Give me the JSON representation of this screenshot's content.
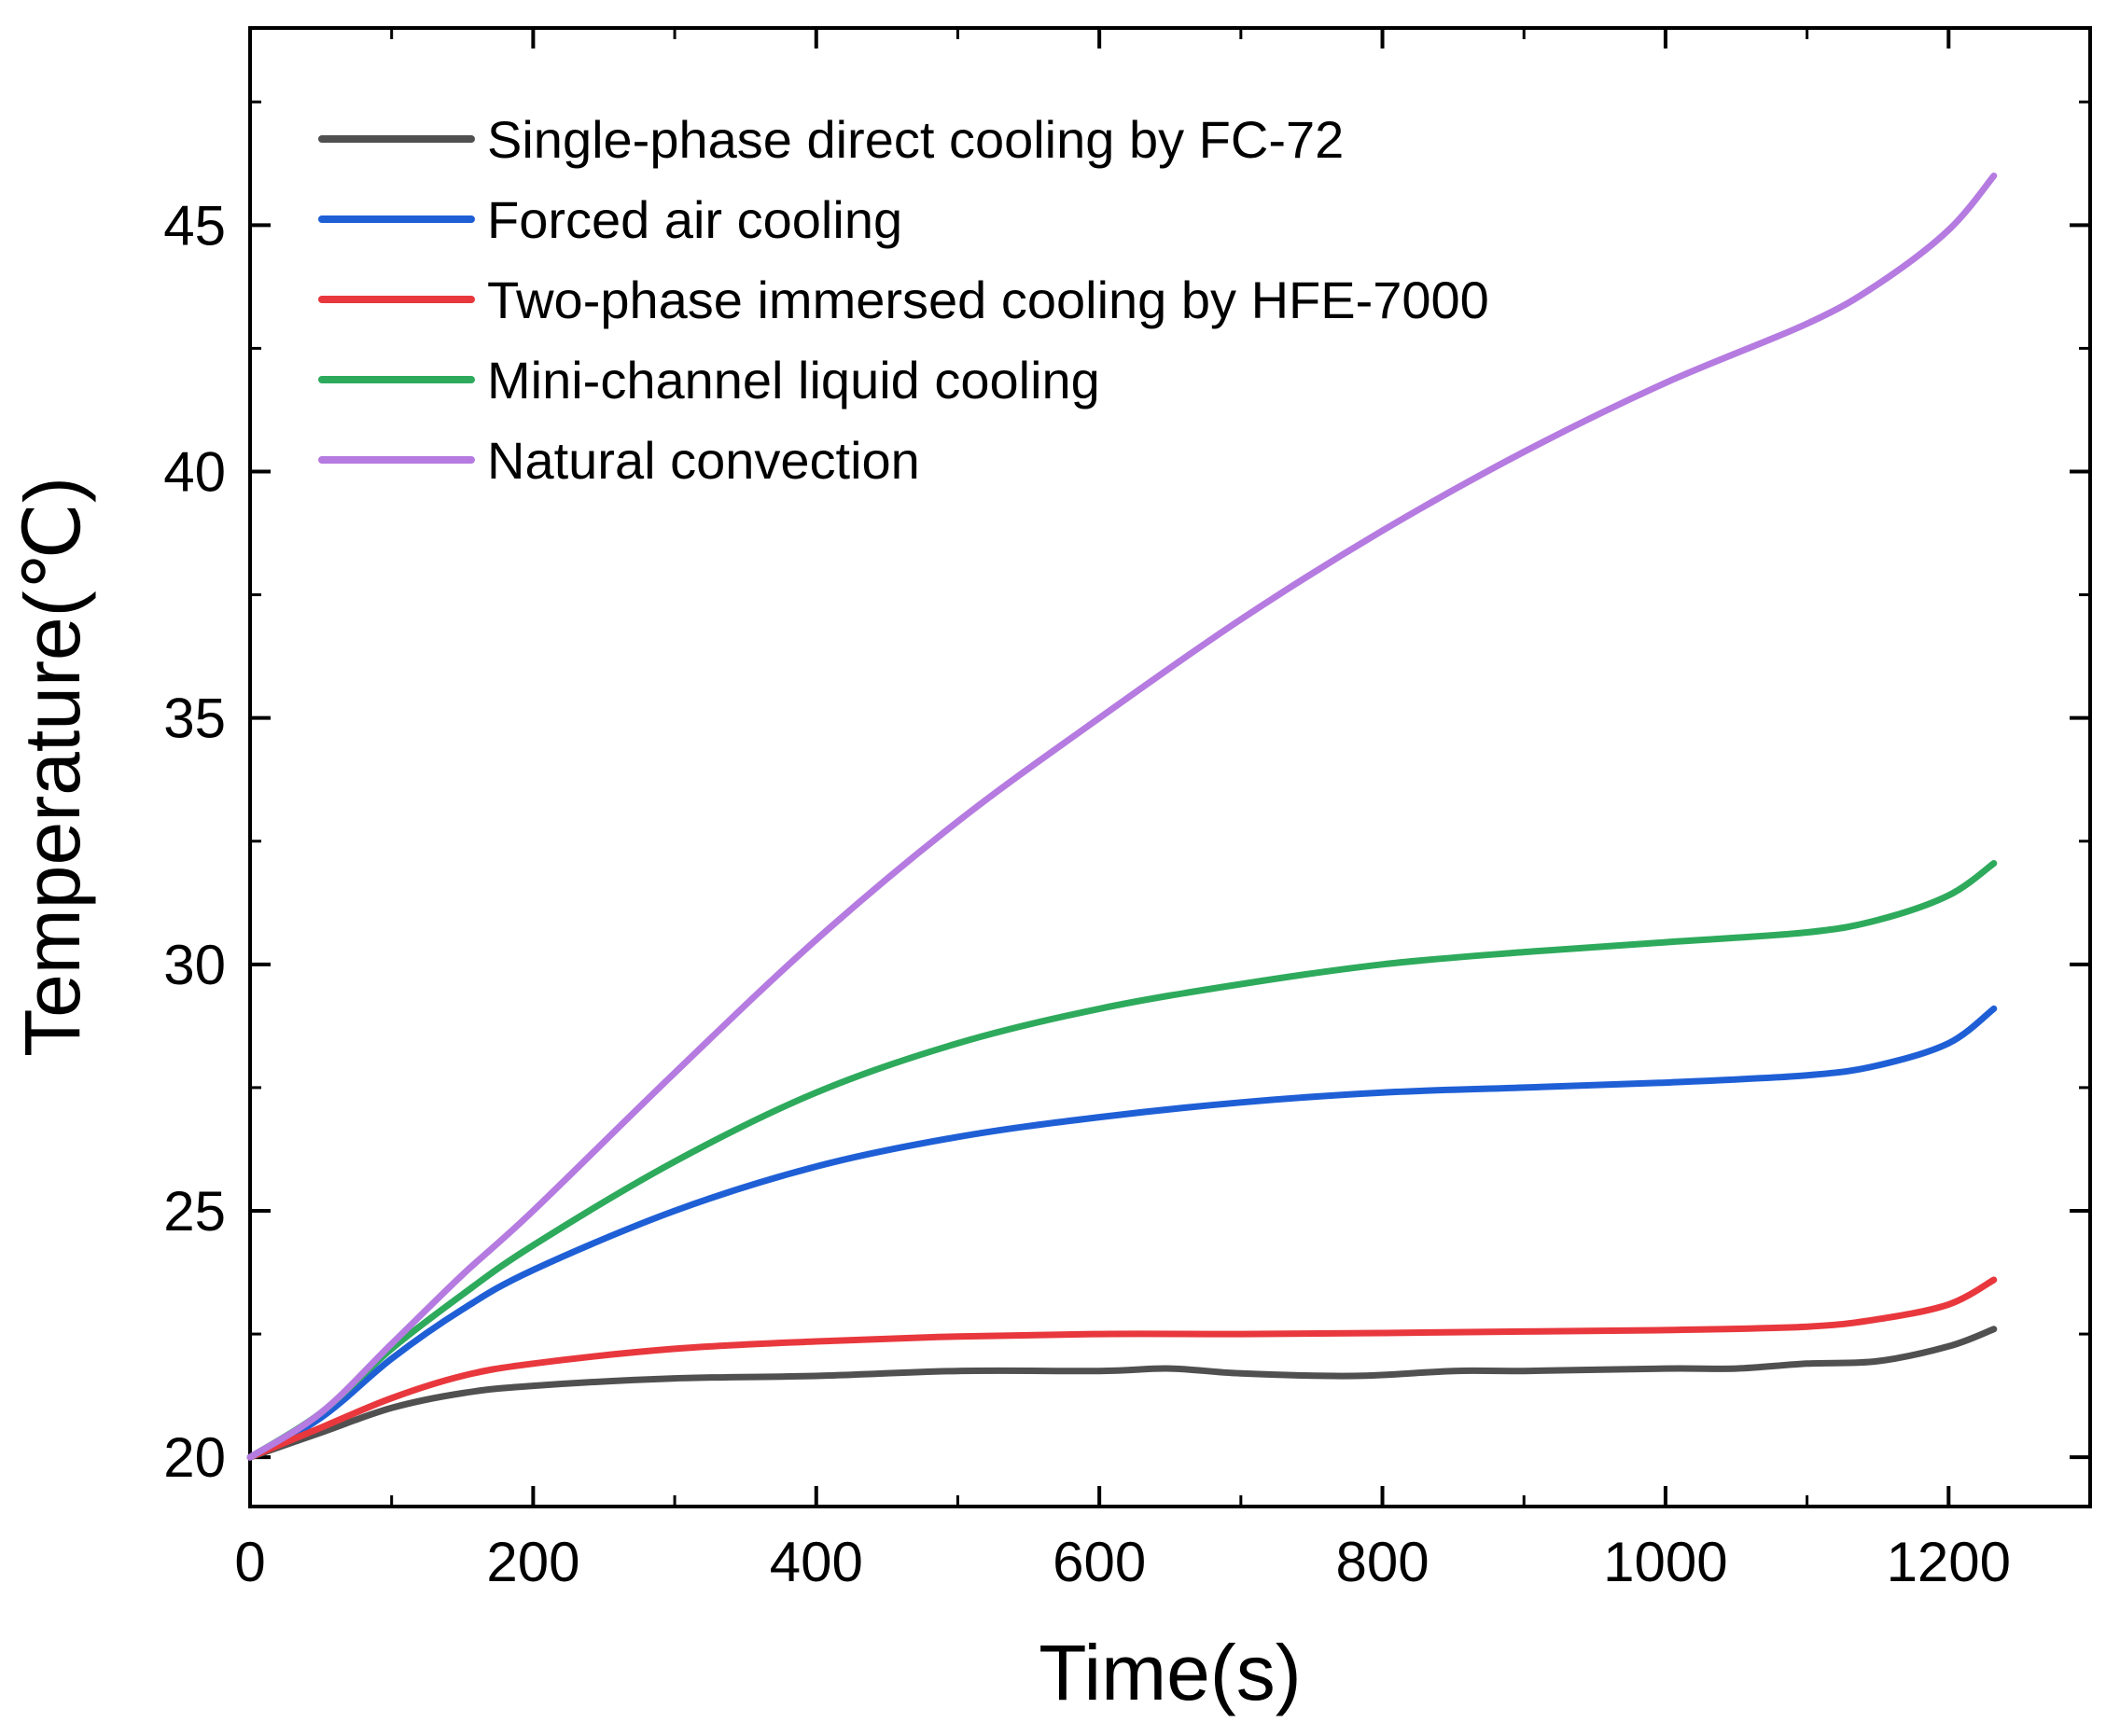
{
  "chart_data": {
    "type": "line",
    "title": "",
    "xlabel": "Time(s)",
    "ylabel": "Temperature(℃)",
    "xlim": [
      0,
      1300
    ],
    "ylim": [
      19,
      49
    ],
    "xticks": [
      0,
      200,
      400,
      600,
      800,
      1000,
      1200
    ],
    "yticks": [
      20,
      25,
      30,
      35,
      40,
      45
    ],
    "grid": false,
    "legend_position": "top-left",
    "series": [
      {
        "name": "Single-phase direct cooling by FC-72",
        "color": "#505050",
        "x": [
          0,
          50,
          100,
          150,
          200,
          300,
          400,
          500,
          600,
          650,
          700,
          780,
          850,
          900,
          1000,
          1050,
          1100,
          1150,
          1200,
          1232
        ],
        "y": [
          20.0,
          20.5,
          21.0,
          21.3,
          21.45,
          21.6,
          21.65,
          21.75,
          21.75,
          21.8,
          21.7,
          21.65,
          21.75,
          21.75,
          21.8,
          21.8,
          21.9,
          21.95,
          22.25,
          22.6
        ]
      },
      {
        "name": "Forced air cooling",
        "color": "#1f5fd6",
        "x": [
          0,
          50,
          100,
          150,
          200,
          300,
          400,
          500,
          600,
          700,
          800,
          900,
          1000,
          1100,
          1150,
          1200,
          1232
        ],
        "y": [
          20.0,
          20.8,
          22.0,
          23.0,
          23.8,
          25.0,
          25.9,
          26.5,
          26.9,
          27.2,
          27.4,
          27.5,
          27.6,
          27.75,
          27.95,
          28.4,
          29.1
        ]
      },
      {
        "name": "Two-phase immersed cooling by HFE-7000",
        "color": "#e8383d",
        "x": [
          0,
          50,
          100,
          150,
          200,
          300,
          400,
          500,
          600,
          700,
          800,
          900,
          1000,
          1100,
          1150,
          1200,
          1232
        ],
        "y": [
          20.0,
          20.6,
          21.2,
          21.65,
          21.9,
          22.2,
          22.35,
          22.45,
          22.5,
          22.5,
          22.52,
          22.55,
          22.58,
          22.65,
          22.8,
          23.1,
          23.6
        ]
      },
      {
        "name": "Mini-channel liquid cooling",
        "color": "#2eaa5c",
        "x": [
          0,
          50,
          100,
          150,
          200,
          300,
          400,
          500,
          600,
          700,
          800,
          900,
          1000,
          1100,
          1150,
          1200,
          1232
        ],
        "y": [
          20.0,
          20.9,
          22.2,
          23.3,
          24.3,
          26.0,
          27.4,
          28.4,
          29.1,
          29.6,
          30.0,
          30.25,
          30.45,
          30.65,
          30.9,
          31.4,
          32.05
        ]
      },
      {
        "name": "Natural convection",
        "color": "#b57be0",
        "x": [
          0,
          50,
          100,
          150,
          200,
          300,
          400,
          500,
          600,
          700,
          800,
          900,
          1000,
          1100,
          1150,
          1200,
          1232
        ],
        "y": [
          20.0,
          20.9,
          22.3,
          23.7,
          25.0,
          27.8,
          30.5,
          32.9,
          35.0,
          37.0,
          38.8,
          40.4,
          41.8,
          43.0,
          43.8,
          44.9,
          46.0
        ]
      }
    ]
  }
}
